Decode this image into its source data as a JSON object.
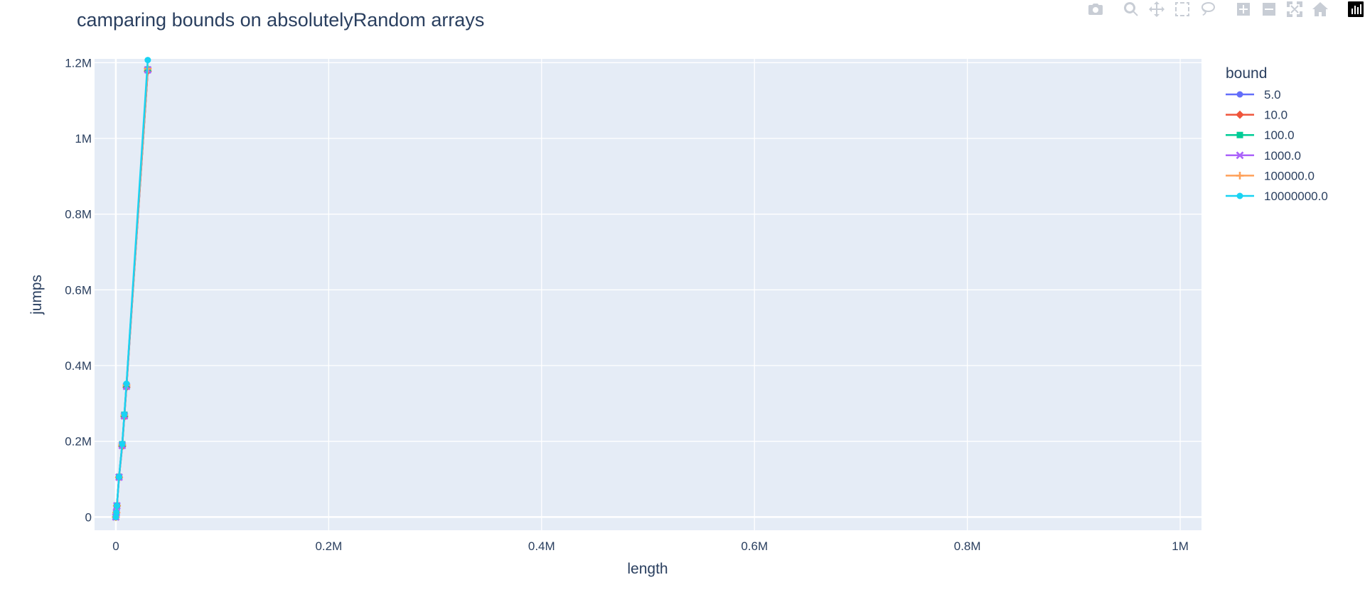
{
  "chart_data": {
    "type": "line",
    "title": "camparing bounds on absolutelyRandom arrays",
    "xlabel": "length",
    "ylabel": "jumps",
    "xlim": [
      -20000,
      1020000
    ],
    "ylim": [
      -35000,
      1210000
    ],
    "x_ticks": [
      {
        "value": 0,
        "label": "0"
      },
      {
        "value": 200000,
        "label": "0.2M"
      },
      {
        "value": 400000,
        "label": "0.4M"
      },
      {
        "value": 600000,
        "label": "0.6M"
      },
      {
        "value": 800000,
        "label": "0.8M"
      },
      {
        "value": 1000000,
        "label": "1M"
      }
    ],
    "y_ticks": [
      {
        "value": 0,
        "label": "0"
      },
      {
        "value": 200000,
        "label": "0.2M"
      },
      {
        "value": 400000,
        "label": "0.4M"
      },
      {
        "value": 600000,
        "label": "0.6M"
      },
      {
        "value": 800000,
        "label": "0.8M"
      },
      {
        "value": 1000000,
        "label": "1M"
      },
      {
        "value": 1200000,
        "label": "1.2M"
      }
    ],
    "grid": true,
    "legend": {
      "title": "bound",
      "placement": "right"
    },
    "x": [
      0,
      500,
      1000,
      3000,
      6000,
      8000,
      10000,
      30000
    ],
    "series": [
      {
        "name": "5.0",
        "color": "#636efa",
        "marker": "circle",
        "values": [
          0,
          12000,
          30000,
          105000,
          190000,
          268000,
          350000,
          1180000
        ]
      },
      {
        "name": "10.0",
        "color": "#ef553b",
        "marker": "diamond",
        "values": [
          0,
          11500,
          29000,
          104000,
          187000,
          265000,
          343000,
          1178000
        ]
      },
      {
        "name": "100.0",
        "color": "#00cc96",
        "marker": "square",
        "values": [
          0,
          12000,
          30000,
          106000,
          192000,
          270000,
          347000,
          1182000
        ]
      },
      {
        "name": "1000.0",
        "color": "#ab63fa",
        "marker": "x",
        "values": [
          0,
          11800,
          29500,
          105000,
          189000,
          267000,
          345000,
          1181000
        ]
      },
      {
        "name": "100000.0",
        "color": "#ffa15a",
        "marker": "cross",
        "values": [
          0,
          12000,
          30000,
          105500,
          191000,
          269000,
          348000,
          1184000
        ]
      },
      {
        "name": "10000000.0",
        "color": "#19d3f3",
        "marker": "circle",
        "values": [
          0,
          12000,
          30000,
          106000,
          193000,
          271000,
          352000,
          1207000
        ]
      }
    ]
  },
  "modebar": {
    "icons": [
      "camera-icon",
      "zoom-icon",
      "pan-icon",
      "box-select-icon",
      "lasso-select-icon",
      "zoom-in-icon",
      "zoom-out-icon",
      "autoscale-icon",
      "reset-axes-icon",
      "plotly-logo-icon"
    ]
  }
}
